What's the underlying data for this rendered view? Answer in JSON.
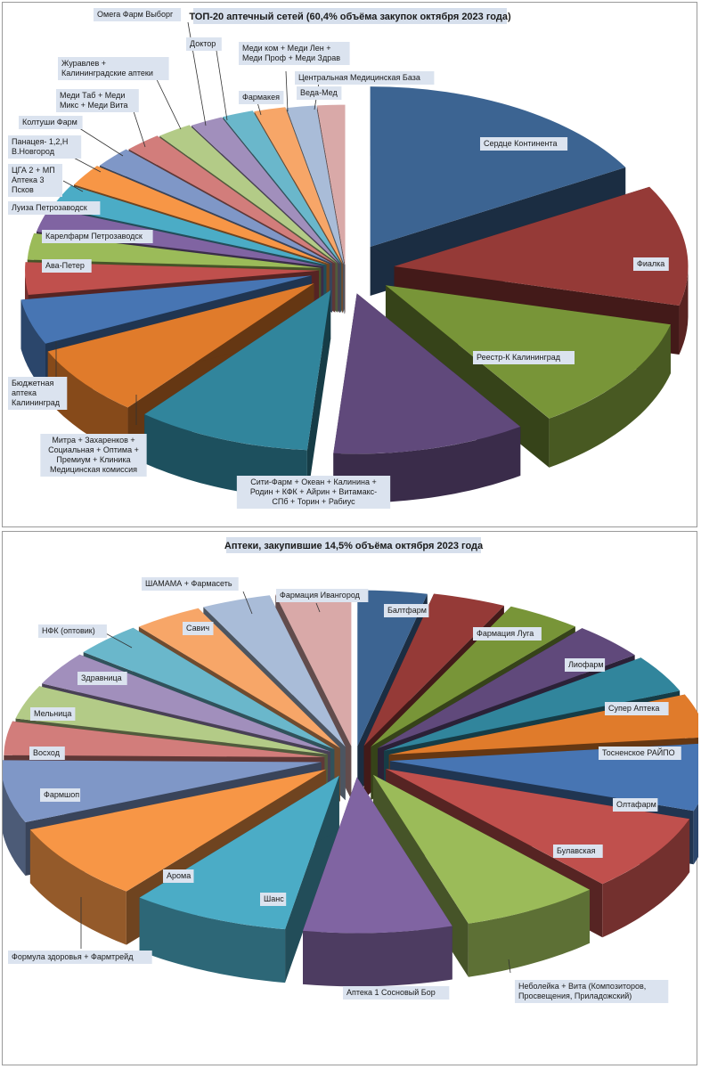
{
  "chart_data": [
    {
      "type": "pie",
      "title": "ТОП-20 аптечный сетей (60,4% объёма закупок октября  2023 года)",
      "categories": [
        "Сердце Континента",
        "Фиалка",
        "Реестр-К Калининград",
        "Сити-Фарм + Океан + Калинина + Родин + КФК + Айрин + Витамакс-СПб + Торин + Рабиус",
        "Митра + Захаренков + Социальная + Оптима + Премиум + Клиника Медицинская комиссия",
        "Бюджетная аптека Калининград",
        "Ава-Петер",
        "Карелфарм Петрозаводск",
        "Луиза Петрозаводск",
        "ЦГА 2 + МП Аптека 3 Псков",
        "Панацея- 1,2,Н В.Новгород",
        "Колтуши Фарм",
        "Меди Таб + Меди Микс + Меди Вита",
        "Журавлев + Калининградские аптеки",
        "Омега Фарм Выборг",
        "Доктор",
        "Фармакея",
        "Меди ком + Меди Лен + Меди Проф + Меди Здрав",
        "Центральная Медицинская База",
        "Веда-Мед"
      ],
      "values": [
        16.5,
        12.0,
        11.5,
        10.5,
        9.5,
        7.0,
        4.5,
        3.2,
        2.6,
        2.4,
        2.3,
        2.2,
        2.1,
        2.0,
        1.9,
        1.8,
        1.7,
        1.7,
        1.6,
        1.5
      ],
      "label_lines": [
        [
          "Сердце Континента"
        ],
        [
          "Фиалка"
        ],
        [
          "Реестр-К Калининград"
        ],
        [
          "Сити-Фарм + Океан + Калинина +",
          "Родин + КФК + Айрин + Витамакс-",
          "СПб + Торин + Рабиус"
        ],
        [
          "Митра + Захаренков +",
          "Социальная + Оптима +",
          "Премиум + Клиника",
          "Медицинская комиссия"
        ],
        [
          "Бюджетная",
          "аптека",
          "Калининград"
        ],
        [
          "Ава-Петер"
        ],
        [
          "Карелфарм Петрозаводск"
        ],
        [
          "Луиза Петрозаводск"
        ],
        [
          "ЦГА 2 + МП",
          "Аптека 3",
          "Псков"
        ],
        [
          "Панацея- 1,2,Н",
          "В.Новгород"
        ],
        [
          "Колтуши Фарм"
        ],
        [
          "Меди Таб + Меди",
          "Микс + Меди Вита"
        ],
        [
          "Журавлев +",
          "Калининградские аптеки"
        ],
        [
          "Омега Фарм Выборг"
        ],
        [
          "Доктор"
        ],
        [
          "Фармакея"
        ],
        [
          "Меди ком + Меди Лен +",
          "Меди Проф + Меди Здрав"
        ],
        [
          "Центральная Медицинская База"
        ],
        [
          "Веда-Мед"
        ]
      ],
      "colors": [
        "#3c6492",
        "#953a37",
        "#789538",
        "#60497b",
        "#31859c",
        "#e07b2b",
        "#4775b3",
        "#c0504d",
        "#9bbb59",
        "#8064a2",
        "#4bacc6",
        "#f79646",
        "#7f97c7",
        "#d27d7b",
        "#b3cb87",
        "#a18fbc",
        "#6ab7cb",
        "#f7a668",
        "#a9bcd8",
        "#d9a9a8"
      ],
      "legend": "none"
    },
    {
      "type": "pie",
      "title": "Аптеки, закупившие 14,5% объёма октября 2023 года",
      "categories": [
        "Балтфарм",
        "Фармация Луга",
        "Лиофарм",
        "Супер Аптека",
        "Тосненское РАЙПО",
        "Олтафарм",
        "Булавская",
        "Неболейка + Вита (Композиторов, Просвещения, Приладожский)",
        "Аптека 1 Сосновый Бор",
        "Шанс",
        "Арома",
        "Формула здоровья + Фармтрейд",
        "Фармшоп",
        "Восход",
        "Мельница",
        "Здравница",
        "НФК (оптовик)",
        "Савич",
        "ШАМАМА + Фармасеть",
        "Фармация Ивангород"
      ],
      "values": [
        3.5,
        3.7,
        3.8,
        3.8,
        3.9,
        4.5,
        7.0,
        8.0,
        7.0,
        7.5,
        8.0,
        8.0,
        6.5,
        3.5,
        3.5,
        3.5,
        3.5,
        3.5,
        3.5,
        3.8
      ],
      "label_lines": [
        [
          "Балтфарм"
        ],
        [
          "Фармация Луга"
        ],
        [
          "Лиофарм"
        ],
        [
          "Супер Аптека"
        ],
        [
          "Тосненское РАЙПО"
        ],
        [
          "Олтафарм"
        ],
        [
          "Булавская"
        ],
        [
          "Неболейка + Вита (Композиторов,",
          "Просвещения, Приладожский)"
        ],
        [
          "Аптека 1 Сосновый Бор"
        ],
        [
          "Шанс"
        ],
        [
          "Арома"
        ],
        [
          "Формула  здоровья + Фармтрейд"
        ],
        [
          "Фармшоп"
        ],
        [
          "Восход"
        ],
        [
          "Мельница"
        ],
        [
          "Здравница"
        ],
        [
          "НФК (оптовик)"
        ],
        [
          "Савич"
        ],
        [
          "ШАМАМА  + Фармасеть"
        ],
        [
          "Фармация Ивангород"
        ]
      ],
      "colors": [
        "#3c6492",
        "#953a37",
        "#789538",
        "#60497b",
        "#31859c",
        "#e07b2b",
        "#4775b3",
        "#c0504d",
        "#9bbb59",
        "#8064a2",
        "#4bacc6",
        "#f79646",
        "#7f97c7",
        "#d27d7b",
        "#b3cb87",
        "#a18fbc",
        "#6ab7cb",
        "#f7a668",
        "#a9bcd8",
        "#d9a9a8"
      ],
      "legend": "none"
    }
  ]
}
